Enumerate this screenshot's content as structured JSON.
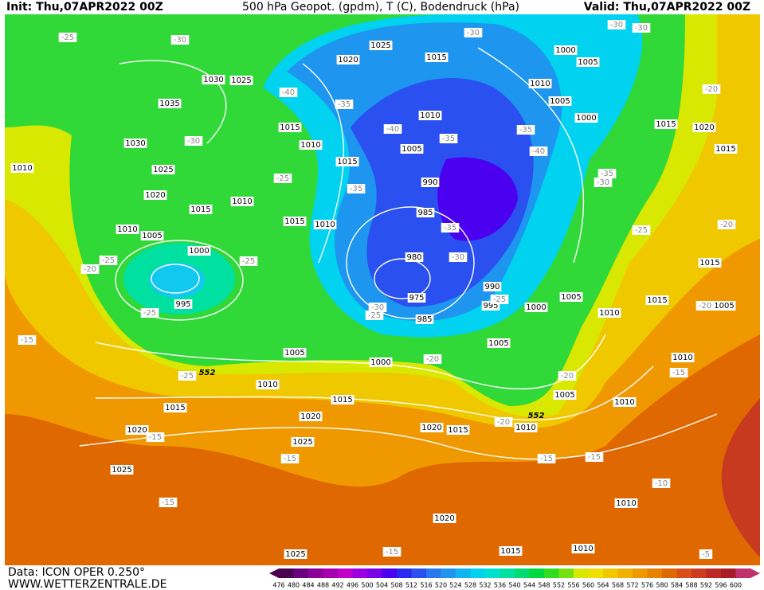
{
  "header": {
    "init": "Init: Thu,07APR2022 00Z",
    "title": "500 hPa Geopot. (gpdm), T (C), Bodendruck (hPa)",
    "valid": "Valid: Thu,07APR2022 00Z"
  },
  "footer": {
    "data": "Data: ICON OPER 0.250°",
    "site": "WWW.WETTERZENTRALE.DE"
  },
  "isobars": [
    "1025",
    "1020",
    "1015",
    "1000",
    "1005",
    "1030",
    "1025",
    "1035",
    "1010",
    "1005",
    "1010",
    "1000",
    "1015",
    "1020",
    "1015",
    "1030",
    "1010",
    "1015",
    "1005",
    "1015",
    "1010",
    "1025",
    "990",
    "1020",
    "1010",
    "1015",
    "985",
    "1015",
    "1010",
    "1010",
    "1005",
    "1000",
    "1015",
    "980",
    "990",
    "975",
    "995",
    "995",
    "1000",
    "1005",
    "1015",
    "1010",
    "985",
    "1005",
    "1005",
    "1000",
    "1010",
    "1010",
    "1015",
    "1005",
    "1010",
    "1015",
    "1020",
    "1020",
    "1015",
    "1010",
    "1020",
    "1025",
    "1025",
    "1010",
    "1020",
    "1010",
    "1025",
    "1015",
    "1005"
  ],
  "temperatures": [
    "-30",
    "-25",
    "-30",
    "-30",
    "-30",
    "-40",
    "-35",
    "-30",
    "-35",
    "-40",
    "-35",
    "-40",
    "-25",
    "-35",
    "-35",
    "-30",
    "-25",
    "-20",
    "-20",
    "-25",
    "-25",
    "-20",
    "-30",
    "-35",
    "-25",
    "-30",
    "-25",
    "-25",
    "-20",
    "-15",
    "-20",
    "-25",
    "-20",
    "-15",
    "-15",
    "-20",
    "-15",
    "-15",
    "-15",
    "-15",
    "-10",
    "-15",
    "-5"
  ],
  "heights": [
    "552",
    "552"
  ],
  "colorbar": {
    "values": [
      476,
      480,
      484,
      488,
      492,
      496,
      500,
      504,
      508,
      512,
      516,
      520,
      524,
      528,
      532,
      536,
      540,
      544,
      548,
      552,
      556,
      560,
      564,
      568,
      572,
      576,
      580,
      584,
      588,
      592,
      596,
      600
    ],
    "colors": [
      "#4b0050",
      "#6a0080",
      "#8a0099",
      "#a600b0",
      "#c000c8",
      "#9c00e0",
      "#7a00e8",
      "#4b00f0",
      "#2a2af0",
      "#2a50f0",
      "#2a78f0",
      "#1e96f0",
      "#10b4f0",
      "#00d2f0",
      "#00e0d0",
      "#00e0a0",
      "#00dc70",
      "#00d840",
      "#30dc20",
      "#78e010",
      "#d8e800",
      "#f0e000",
      "#f0c800",
      "#f0b000",
      "#f09800",
      "#e88000",
      "#e06800",
      "#d85018",
      "#cc3c20",
      "#bc2824",
      "#a81c24",
      "#c0306c"
    ]
  }
}
